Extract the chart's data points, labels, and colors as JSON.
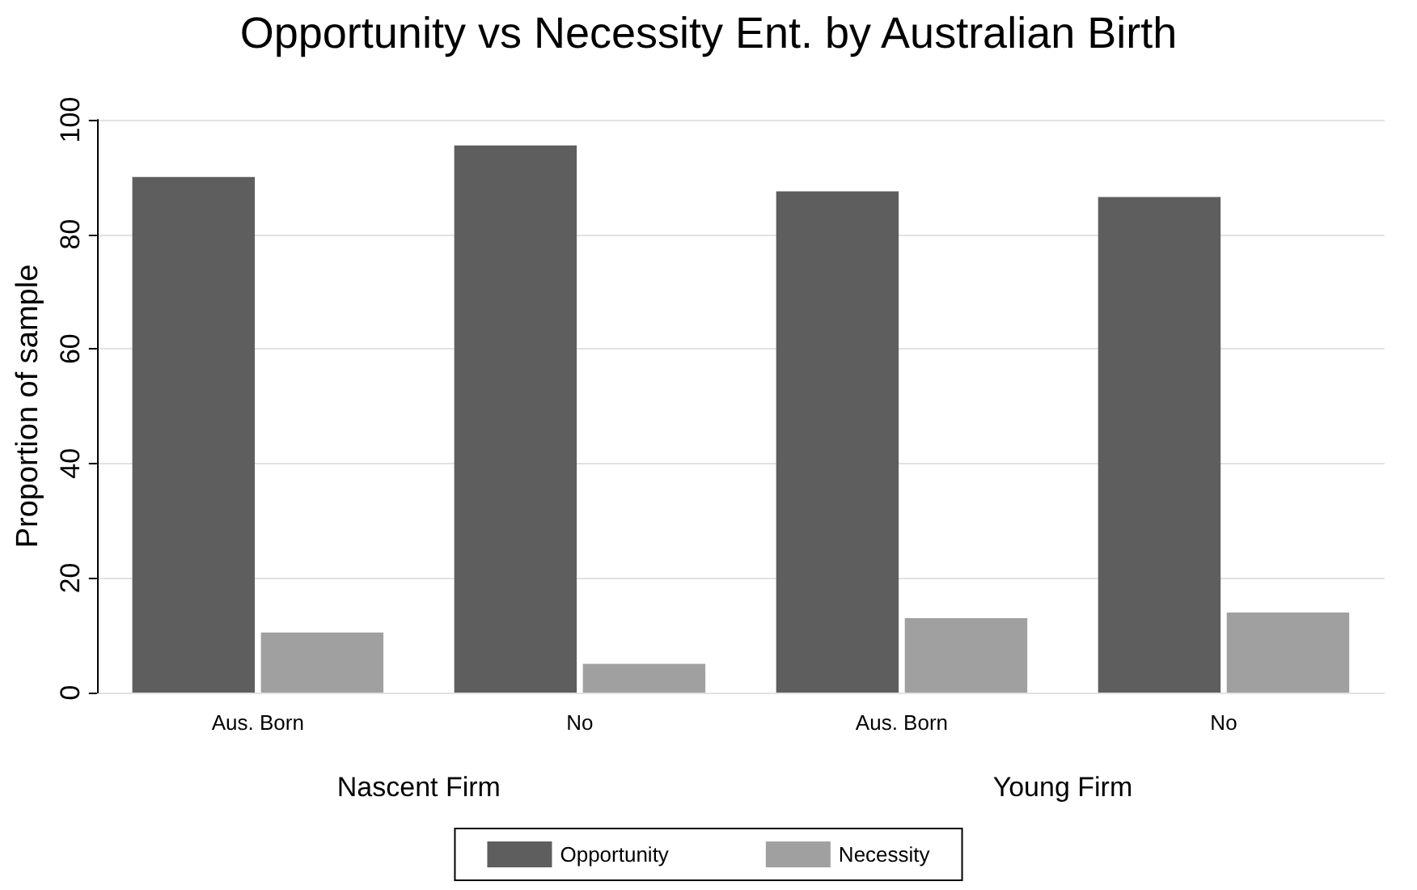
{
  "chart_data": {
    "type": "bar",
    "title": "Opportunity vs Necessity Ent. by Australian Birth",
    "ylabel": "Proportion of sample",
    "categories": [
      "Aus. Born",
      "No",
      "Aus. Born",
      "No"
    ],
    "series": [
      {
        "name": "Opportunity",
        "color": "#5e5e5e",
        "values": [
          90,
          95.5,
          87.5,
          86.5
        ]
      },
      {
        "name": "Necessity",
        "color": "#a0a0a0",
        "values": [
          10.5,
          5,
          13,
          14
        ]
      }
    ],
    "annotations": [
      "Nascent Firm",
      "Young Firm"
    ],
    "ylim": [
      0,
      100
    ],
    "yticks": [
      0,
      20,
      40,
      60,
      80,
      100
    ],
    "grid": "y",
    "legend": "bottom"
  }
}
